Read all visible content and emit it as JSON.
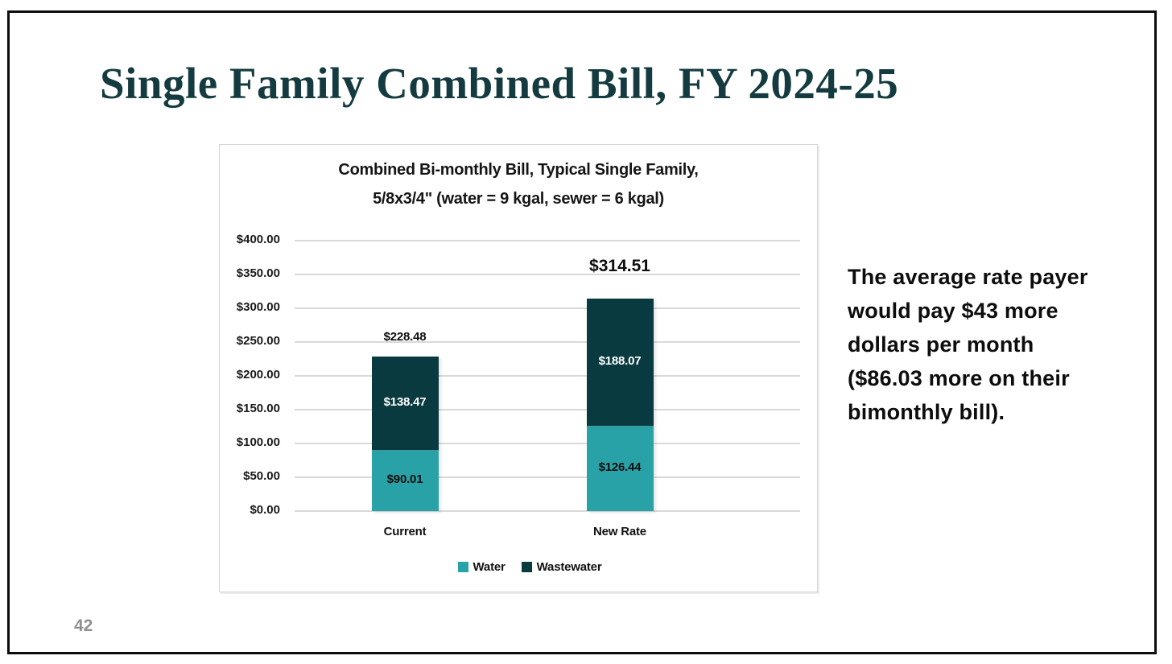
{
  "slide": {
    "title": "Single Family Combined Bill, FY 2024-25",
    "side_note": "The average rate payer would pay $43 more dollars per month ($86.03 more on their bimonthly bill).",
    "page_number": "42",
    "colors": {
      "title_text": "#143b3f",
      "water": "#29a2a7",
      "wastewater": "#093a40",
      "gridline": "#d9d9d9",
      "page_number": "#8f8f8f"
    }
  },
  "chart_data": {
    "type": "bar",
    "stacked": true,
    "title_line1": "Combined Bi-monthly Bill, Typical Single Family,",
    "title_line2": "5/8x3/4\" (water = 9 kgal, sewer = 6 kgal)",
    "categories": [
      "Current",
      "New Rate"
    ],
    "series": [
      {
        "name": "Water",
        "color": "#29a2a7",
        "values": [
          90.01,
          126.44
        ],
        "labels": [
          "$90.01",
          "$126.44"
        ],
        "label_color": "#0d0d0d"
      },
      {
        "name": "Wastewater",
        "color": "#093a40",
        "values": [
          138.47,
          188.07
        ],
        "labels": [
          "$138.47",
          "$188.07"
        ],
        "label_color": "#ffffff"
      }
    ],
    "totals": [
      228.48,
      314.51
    ],
    "total_labels": [
      "$228.48",
      "$314.51"
    ],
    "y_ticks": [
      {
        "value": 400,
        "label": "$400.00"
      },
      {
        "value": 350,
        "label": "$350.00"
      },
      {
        "value": 300,
        "label": "$300.00"
      },
      {
        "value": 250,
        "label": "$250.00"
      },
      {
        "value": 200,
        "label": "$200.00"
      },
      {
        "value": 150,
        "label": "$150.00"
      },
      {
        "value": 100,
        "label": "$100.00"
      },
      {
        "value": 50,
        "label": "$50.00"
      },
      {
        "value": 0,
        "label": "$0.00"
      }
    ],
    "ylim": [
      0,
      400
    ],
    "grid": true,
    "legend_position": "bottom",
    "legend": [
      "Water",
      "Wastewater"
    ]
  }
}
